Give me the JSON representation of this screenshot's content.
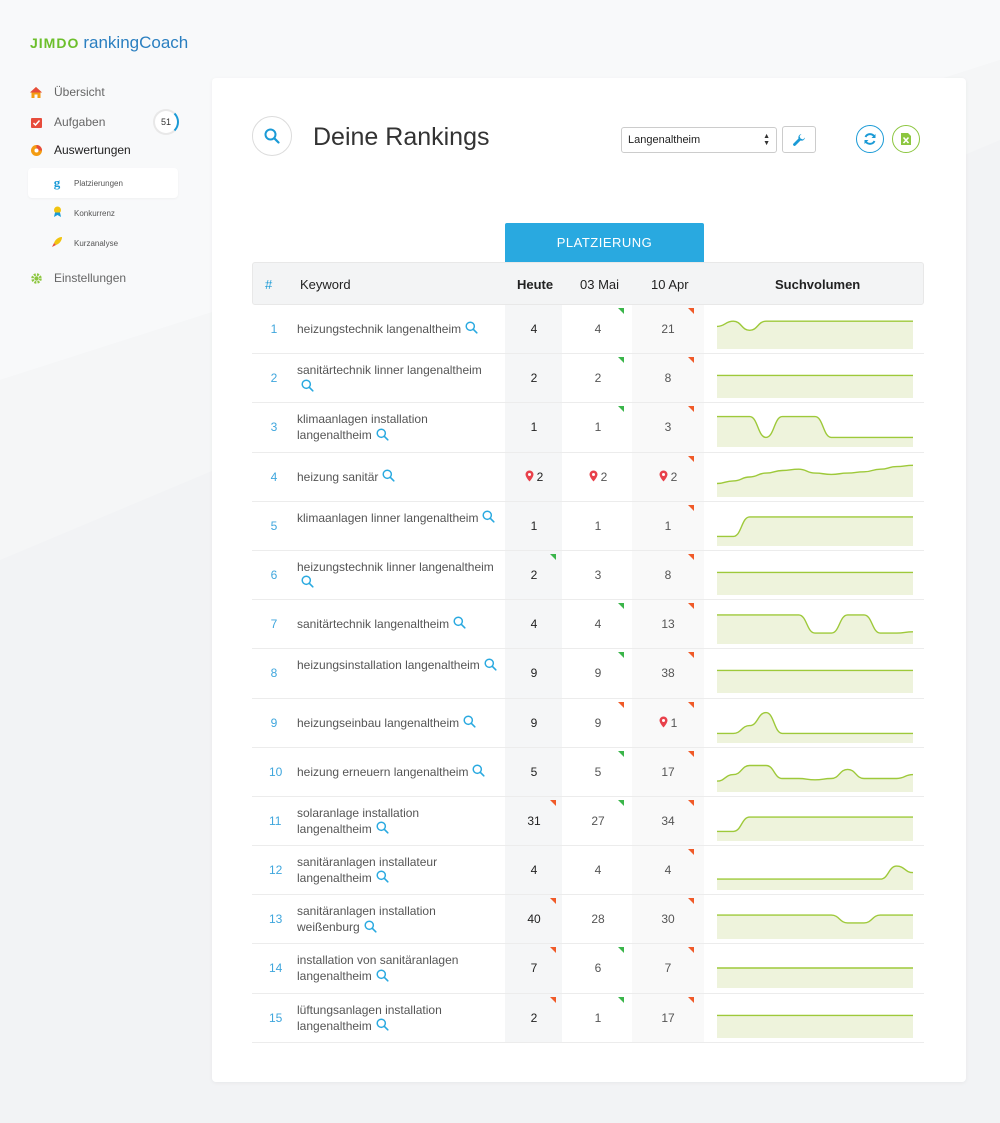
{
  "brand": {
    "part1": "JIMDO",
    "part2": "rankingCoach"
  },
  "nav": {
    "items": [
      {
        "label": "Übersicht",
        "icon": "home-icon"
      },
      {
        "label": "Aufgaben",
        "icon": "calendar-check-icon",
        "badge": "51"
      },
      {
        "label": "Auswertungen",
        "icon": "pie-chart-icon"
      },
      {
        "label": "Einstellungen",
        "icon": "gear-icon"
      }
    ],
    "sub_items": [
      {
        "label": "Platzierungen",
        "icon": "google-icon"
      },
      {
        "label": "Konkurrenz",
        "icon": "award-icon"
      },
      {
        "label": "Kurzanalyse",
        "icon": "rocket-icon"
      }
    ]
  },
  "page": {
    "title": "Deine Rankings",
    "location_select": "Langenaltheim",
    "tab_label": "PLATZIERUNG"
  },
  "table": {
    "headers": {
      "num": "#",
      "keyword": "Keyword",
      "heute": "Heute",
      "mai": "03 Mai",
      "apr": "10 Apr",
      "suchvolumen": "Suchvolumen"
    },
    "rows": [
      {
        "n": "1",
        "kw": "heizungstechnik langenaltheim",
        "heute": "4",
        "mai": "4",
        "apr": "21",
        "t": [
          "",
          "green",
          "red"
        ],
        "pins": [
          false,
          false,
          false
        ],
        "spark": [
          0.4,
          0.2,
          0.55,
          0.2,
          0.2,
          0.2,
          0.2,
          0.2,
          0.2,
          0.2,
          0.2,
          0.2,
          0.2
        ]
      },
      {
        "n": "2",
        "kw": "sanitärtechnik linner langenaltheim",
        "heute": "2",
        "mai": "2",
        "apr": "8",
        "t": [
          "",
          "green",
          "red"
        ],
        "pins": [
          false,
          false,
          false
        ],
        "spark": [
          0.4,
          0.4,
          0.4,
          0.4,
          0.4,
          0.4,
          0.4,
          0.4,
          0.4,
          0.4,
          0.4,
          0.4,
          0.4
        ]
      },
      {
        "n": "3",
        "kw": "klimaanlagen installation langenaltheim",
        "heute": "1",
        "mai": "1",
        "apr": "3",
        "t": [
          "",
          "green",
          "red"
        ],
        "pins": [
          false,
          false,
          false
        ],
        "spark": [
          0.1,
          0.1,
          0.1,
          0.9,
          0.1,
          0.1,
          0.1,
          0.9,
          0.9,
          0.9,
          0.9,
          0.9,
          0.9
        ]
      },
      {
        "n": "4",
        "kw": "heizung sanitär",
        "heute": "2",
        "mai": "2",
        "apr": "2",
        "t": [
          "",
          "",
          "red"
        ],
        "pins": [
          true,
          true,
          true
        ],
        "spark": [
          0.75,
          0.65,
          0.5,
          0.35,
          0.25,
          0.2,
          0.35,
          0.4,
          0.35,
          0.3,
          0.2,
          0.1,
          0.05
        ]
      },
      {
        "n": "5",
        "kw": "klimaanlagen linner langenaltheim",
        "heute": "1",
        "mai": "1",
        "apr": "1",
        "t": [
          "",
          "",
          "red"
        ],
        "pins": [
          false,
          false,
          false
        ],
        "spark": [
          0.9,
          0.9,
          0.15,
          0.15,
          0.15,
          0.15,
          0.15,
          0.15,
          0.15,
          0.15,
          0.15,
          0.15,
          0.15
        ]
      },
      {
        "n": "6",
        "kw": "heizungstechnik linner langenaltheim",
        "heute": "2",
        "mai": "3",
        "apr": "8",
        "t": [
          "green",
          "",
          "red"
        ],
        "pins": [
          false,
          false,
          false
        ],
        "spark": [
          0.4,
          0.4,
          0.4,
          0.4,
          0.4,
          0.4,
          0.4,
          0.4,
          0.4,
          0.4,
          0.4,
          0.4,
          0.4
        ]
      },
      {
        "n": "7",
        "kw": "sanitärtechnik langenaltheim",
        "heute": "4",
        "mai": "4",
        "apr": "13",
        "t": [
          "",
          "green",
          "red"
        ],
        "pins": [
          false,
          false,
          false
        ],
        "spark": [
          0.15,
          0.15,
          0.15,
          0.15,
          0.15,
          0.15,
          0.85,
          0.85,
          0.15,
          0.15,
          0.85,
          0.85,
          0.8
        ]
      },
      {
        "n": "8",
        "kw": "heizungsinstallation langenaltheim",
        "heute": "9",
        "mai": "9",
        "apr": "38",
        "t": [
          "",
          "green",
          "red"
        ],
        "pins": [
          false,
          false,
          false
        ],
        "spark": [
          0.4,
          0.4,
          0.4,
          0.4,
          0.4,
          0.4,
          0.4,
          0.4,
          0.4,
          0.4,
          0.4,
          0.4,
          0.4
        ]
      },
      {
        "n": "9",
        "kw": "heizungseinbau langenaltheim",
        "heute": "9",
        "mai": "9",
        "apr": "1",
        "t": [
          "",
          "red",
          "red"
        ],
        "pins": [
          false,
          false,
          true
        ],
        "spark": [
          0.9,
          0.9,
          0.6,
          0.1,
          0.9,
          0.9,
          0.9,
          0.9,
          0.9,
          0.9,
          0.9,
          0.9,
          0.9
        ]
      },
      {
        "n": "10",
        "kw": "heizung erneuern langenaltheim",
        "heute": "5",
        "mai": "5",
        "apr": "17",
        "t": [
          "",
          "green",
          "red"
        ],
        "pins": [
          false,
          false,
          false
        ],
        "spark": [
          0.85,
          0.6,
          0.25,
          0.25,
          0.75,
          0.75,
          0.8,
          0.75,
          0.4,
          0.75,
          0.75,
          0.75,
          0.6
        ]
      },
      {
        "n": "11",
        "kw": "solaranlage installation langenaltheim",
        "heute": "31",
        "mai": "27",
        "apr": "34",
        "t": [
          "red",
          "green",
          "red"
        ],
        "pins": [
          false,
          false,
          false
        ],
        "spark": [
          0.9,
          0.9,
          0.35,
          0.35,
          0.35,
          0.35,
          0.35,
          0.35,
          0.35,
          0.35,
          0.35,
          0.35,
          0.35
        ]
      },
      {
        "n": "12",
        "kw": "sanitäranlagen installateur langenaltheim",
        "heute": "4",
        "mai": "4",
        "apr": "4",
        "t": [
          "",
          "",
          "red"
        ],
        "pins": [
          false,
          false,
          false
        ],
        "spark": [
          0.85,
          0.85,
          0.85,
          0.85,
          0.85,
          0.85,
          0.85,
          0.85,
          0.85,
          0.85,
          0.85,
          0.35,
          0.6
        ]
      },
      {
        "n": "13",
        "kw": "sanitäranlagen installation weißenburg",
        "heute": "40",
        "mai": "28",
        "apr": "30",
        "t": [
          "red",
          "",
          "red"
        ],
        "pins": [
          false,
          false,
          false
        ],
        "spark": [
          0.35,
          0.35,
          0.35,
          0.35,
          0.35,
          0.35,
          0.35,
          0.35,
          0.65,
          0.65,
          0.35,
          0.35,
          0.35
        ]
      },
      {
        "n": "14",
        "kw": "installation von sanitäranlagen langenaltheim",
        "heute": "7",
        "mai": "6",
        "apr": "7",
        "t": [
          "red",
          "green",
          "red"
        ],
        "pins": [
          false,
          false,
          false
        ],
        "spark": [
          0.5,
          0.5,
          0.5,
          0.5,
          0.5,
          0.5,
          0.5,
          0.5,
          0.5,
          0.5,
          0.5,
          0.5,
          0.5
        ]
      },
      {
        "n": "15",
        "kw": "lüftungsanlagen installation langenaltheim",
        "heute": "2",
        "mai": "1",
        "apr": "17",
        "t": [
          "red",
          "green",
          "red"
        ],
        "pins": [
          false,
          false,
          false
        ],
        "spark": [
          0.4,
          0.4,
          0.4,
          0.4,
          0.4,
          0.4,
          0.4,
          0.4,
          0.4,
          0.4,
          0.4,
          0.4,
          0.4
        ]
      }
    ]
  },
  "colors": {
    "accent": "#29a9e0",
    "spark_line": "#9ec93a",
    "spark_fill": "#eef3dc",
    "up": "#3ab54a",
    "down": "#f05a28"
  }
}
